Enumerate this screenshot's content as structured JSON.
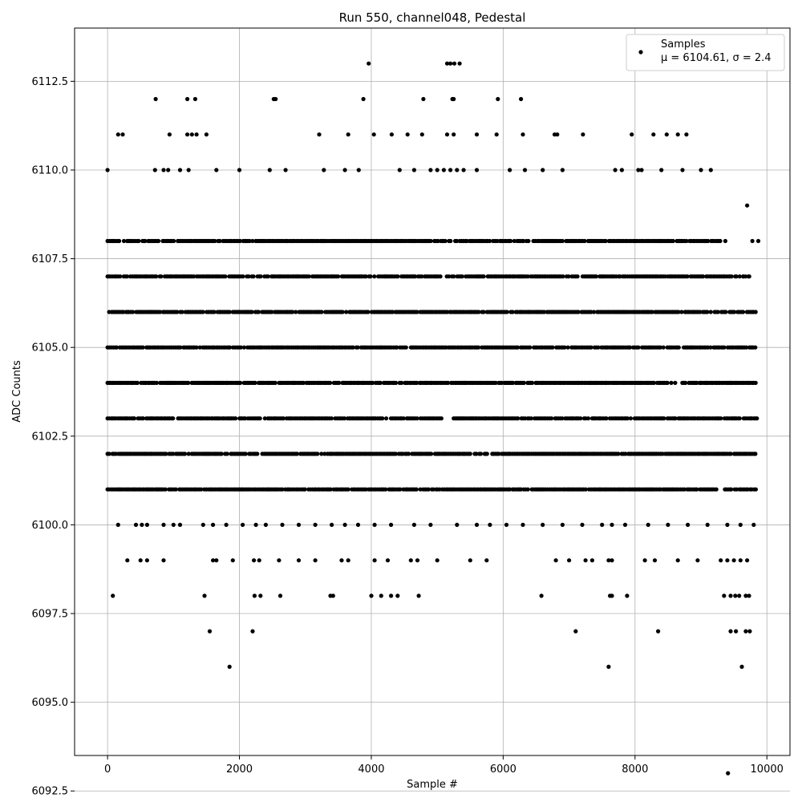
{
  "chart_data": {
    "type": "scatter",
    "title": "Run 550, channel048, Pedestal",
    "xlabel": "Sample #",
    "ylabel": "ADC Counts",
    "xlim": [
      -500,
      10350
    ],
    "ylim": [
      6093.5,
      6114.0
    ],
    "x_ticks": [
      0,
      2000,
      4000,
      6000,
      8000,
      10000
    ],
    "x_tick_labels": [
      "0",
      "2000",
      "4000",
      "6000",
      "8000",
      "10000"
    ],
    "y_ticks": [
      6092.5,
      6095.0,
      6097.5,
      6100.0,
      6102.5,
      6105.0,
      6107.5,
      6110.0,
      6112.5
    ],
    "y_tick_labels": [
      "6092.5",
      "6095.0",
      "6097.5",
      "6100.0",
      "6102.5",
      "6105.0",
      "6107.5",
      "6110.0",
      "6112.5"
    ],
    "grid": true,
    "marker_color": "#000000",
    "legend": {
      "position": "top-right",
      "entry_label": "Samples",
      "stats_line": "μ = 6104.61, σ = 2.4"
    },
    "series": [
      {
        "name": "Samples",
        "mean": 6104.61,
        "sigma": 2.4,
        "x_range": [
          0,
          9850
        ],
        "band_counts": [
          {
            "y": 6101,
            "x_ranges": [
              [
                0,
                9850
              ]
            ]
          },
          {
            "y": 6102,
            "x_ranges": [
              [
                0,
                9850
              ]
            ]
          },
          {
            "y": 6103,
            "x_ranges": [
              [
                0,
                5100
              ],
              [
                5250,
                9850
              ]
            ]
          },
          {
            "y": 6104,
            "x_ranges": [
              [
                0,
                9850
              ]
            ]
          },
          {
            "y": 6105,
            "x_ranges": [
              [
                0,
                9850
              ]
            ]
          },
          {
            "y": 6106,
            "x_ranges": [
              [
                0,
                9850
              ]
            ]
          },
          {
            "y": 6107,
            "x_ranges": [
              [
                0,
                9750
              ]
            ]
          },
          {
            "y": 6108,
            "x_ranges": [
              [
                0,
                9300
              ]
            ]
          }
        ],
        "points": [
          {
            "x": 0,
            "y": 6110
          },
          {
            "x": 160,
            "y": 6111
          },
          {
            "x": 230,
            "y": 6111
          },
          {
            "x": 730,
            "y": 6112
          },
          {
            "x": 1210,
            "y": 6112
          },
          {
            "x": 1330,
            "y": 6112
          },
          {
            "x": 940,
            "y": 6111
          },
          {
            "x": 1210,
            "y": 6111
          },
          {
            "x": 1280,
            "y": 6111
          },
          {
            "x": 1350,
            "y": 6111
          },
          {
            "x": 1500,
            "y": 6111
          },
          {
            "x": 720,
            "y": 6110
          },
          {
            "x": 850,
            "y": 6110
          },
          {
            "x": 920,
            "y": 6110
          },
          {
            "x": 1100,
            "y": 6110
          },
          {
            "x": 1230,
            "y": 6110
          },
          {
            "x": 1650,
            "y": 6110
          },
          {
            "x": 2000,
            "y": 6110
          },
          {
            "x": 2460,
            "y": 6110
          },
          {
            "x": 2520,
            "y": 6112
          },
          {
            "x": 2550,
            "y": 6112
          },
          {
            "x": 2700,
            "y": 6110
          },
          {
            "x": 3210,
            "y": 6111
          },
          {
            "x": 3280,
            "y": 6110
          },
          {
            "x": 3650,
            "y": 6111
          },
          {
            "x": 3600,
            "y": 6110
          },
          {
            "x": 3810,
            "y": 6110
          },
          {
            "x": 3880,
            "y": 6112
          },
          {
            "x": 3960,
            "y": 6113
          },
          {
            "x": 4040,
            "y": 6111
          },
          {
            "x": 4310,
            "y": 6111
          },
          {
            "x": 4430,
            "y": 6110
          },
          {
            "x": 4550,
            "y": 6111
          },
          {
            "x": 4650,
            "y": 6110
          },
          {
            "x": 4770,
            "y": 6111
          },
          {
            "x": 4790,
            "y": 6112
          },
          {
            "x": 4900,
            "y": 6110
          },
          {
            "x": 5000,
            "y": 6110
          },
          {
            "x": 5150,
            "y": 6113
          },
          {
            "x": 5200,
            "y": 6113
          },
          {
            "x": 5260,
            "y": 6113
          },
          {
            "x": 5340,
            "y": 6113
          },
          {
            "x": 5230,
            "y": 6112
          },
          {
            "x": 5250,
            "y": 6112
          },
          {
            "x": 5150,
            "y": 6111
          },
          {
            "x": 5250,
            "y": 6111
          },
          {
            "x": 5100,
            "y": 6110
          },
          {
            "x": 5200,
            "y": 6110
          },
          {
            "x": 5300,
            "y": 6110
          },
          {
            "x": 5400,
            "y": 6110
          },
          {
            "x": 5600,
            "y": 6111
          },
          {
            "x": 5600,
            "y": 6110
          },
          {
            "x": 5900,
            "y": 6111
          },
          {
            "x": 5920,
            "y": 6112
          },
          {
            "x": 6100,
            "y": 6110
          },
          {
            "x": 6270,
            "y": 6112
          },
          {
            "x": 6300,
            "y": 6111
          },
          {
            "x": 6330,
            "y": 6110
          },
          {
            "x": 6600,
            "y": 6110
          },
          {
            "x": 6780,
            "y": 6111
          },
          {
            "x": 6820,
            "y": 6111
          },
          {
            "x": 6900,
            "y": 6110
          },
          {
            "x": 7210,
            "y": 6111
          },
          {
            "x": 7700,
            "y": 6110
          },
          {
            "x": 7800,
            "y": 6110
          },
          {
            "x": 7950,
            "y": 6111
          },
          {
            "x": 8050,
            "y": 6110
          },
          {
            "x": 8100,
            "y": 6110
          },
          {
            "x": 8280,
            "y": 6111
          },
          {
            "x": 8400,
            "y": 6110
          },
          {
            "x": 8480,
            "y": 6111
          },
          {
            "x": 8650,
            "y": 6111
          },
          {
            "x": 8780,
            "y": 6111
          },
          {
            "x": 8720,
            "y": 6110
          },
          {
            "x": 9000,
            "y": 6110
          },
          {
            "x": 9150,
            "y": 6110
          },
          {
            "x": 9700,
            "y": 6109
          },
          {
            "x": 9370,
            "y": 6108
          },
          {
            "x": 9780,
            "y": 6108
          },
          {
            "x": 9870,
            "y": 6108
          },
          {
            "x": 9640,
            "y": 6107
          },
          {
            "x": 9720,
            "y": 6107
          },
          {
            "x": 160,
            "y": 6100
          },
          {
            "x": 430,
            "y": 6100
          },
          {
            "x": 520,
            "y": 6100
          },
          {
            "x": 600,
            "y": 6100
          },
          {
            "x": 850,
            "y": 6100
          },
          {
            "x": 1000,
            "y": 6100
          },
          {
            "x": 1100,
            "y": 6100
          },
          {
            "x": 1450,
            "y": 6100
          },
          {
            "x": 1600,
            "y": 6100
          },
          {
            "x": 1800,
            "y": 6100
          },
          {
            "x": 2050,
            "y": 6100
          },
          {
            "x": 2250,
            "y": 6100
          },
          {
            "x": 2400,
            "y": 6100
          },
          {
            "x": 2650,
            "y": 6100
          },
          {
            "x": 2900,
            "y": 6100
          },
          {
            "x": 3150,
            "y": 6100
          },
          {
            "x": 3400,
            "y": 6100
          },
          {
            "x": 3600,
            "y": 6100
          },
          {
            "x": 3800,
            "y": 6100
          },
          {
            "x": 4050,
            "y": 6100
          },
          {
            "x": 4300,
            "y": 6100
          },
          {
            "x": 4650,
            "y": 6100
          },
          {
            "x": 4900,
            "y": 6100
          },
          {
            "x": 5300,
            "y": 6100
          },
          {
            "x": 5600,
            "y": 6100
          },
          {
            "x": 5800,
            "y": 6100
          },
          {
            "x": 6050,
            "y": 6100
          },
          {
            "x": 6300,
            "y": 6100
          },
          {
            "x": 6600,
            "y": 6100
          },
          {
            "x": 6900,
            "y": 6100
          },
          {
            "x": 7200,
            "y": 6100
          },
          {
            "x": 7500,
            "y": 6100
          },
          {
            "x": 7650,
            "y": 6100
          },
          {
            "x": 7850,
            "y": 6100
          },
          {
            "x": 8200,
            "y": 6100
          },
          {
            "x": 8500,
            "y": 6100
          },
          {
            "x": 8800,
            "y": 6100
          },
          {
            "x": 9100,
            "y": 6100
          },
          {
            "x": 9400,
            "y": 6100
          },
          {
            "x": 9600,
            "y": 6100
          },
          {
            "x": 9800,
            "y": 6100
          },
          {
            "x": 300,
            "y": 6099
          },
          {
            "x": 500,
            "y": 6099
          },
          {
            "x": 600,
            "y": 6099
          },
          {
            "x": 850,
            "y": 6099
          },
          {
            "x": 1600,
            "y": 6099
          },
          {
            "x": 1650,
            "y": 6099
          },
          {
            "x": 1900,
            "y": 6099
          },
          {
            "x": 2220,
            "y": 6099
          },
          {
            "x": 2300,
            "y": 6099
          },
          {
            "x": 2600,
            "y": 6099
          },
          {
            "x": 2900,
            "y": 6099
          },
          {
            "x": 3150,
            "y": 6099
          },
          {
            "x": 3550,
            "y": 6099
          },
          {
            "x": 3650,
            "y": 6099
          },
          {
            "x": 4050,
            "y": 6099
          },
          {
            "x": 4250,
            "y": 6099
          },
          {
            "x": 4600,
            "y": 6099
          },
          {
            "x": 4700,
            "y": 6099
          },
          {
            "x": 5000,
            "y": 6099
          },
          {
            "x": 5500,
            "y": 6099
          },
          {
            "x": 5750,
            "y": 6099
          },
          {
            "x": 6800,
            "y": 6099
          },
          {
            "x": 7000,
            "y": 6099
          },
          {
            "x": 7250,
            "y": 6099
          },
          {
            "x": 7350,
            "y": 6099
          },
          {
            "x": 7600,
            "y": 6099
          },
          {
            "x": 7650,
            "y": 6099
          },
          {
            "x": 8150,
            "y": 6099
          },
          {
            "x": 8300,
            "y": 6099
          },
          {
            "x": 8650,
            "y": 6099
          },
          {
            "x": 8950,
            "y": 6099
          },
          {
            "x": 9300,
            "y": 6099
          },
          {
            "x": 9400,
            "y": 6099
          },
          {
            "x": 9500,
            "y": 6099
          },
          {
            "x": 9600,
            "y": 6099
          },
          {
            "x": 9700,
            "y": 6099
          },
          {
            "x": 80,
            "y": 6098
          },
          {
            "x": 1470,
            "y": 6098
          },
          {
            "x": 2230,
            "y": 6098
          },
          {
            "x": 2320,
            "y": 6098
          },
          {
            "x": 2620,
            "y": 6098
          },
          {
            "x": 3380,
            "y": 6098
          },
          {
            "x": 3420,
            "y": 6098
          },
          {
            "x": 4000,
            "y": 6098
          },
          {
            "x": 4150,
            "y": 6098
          },
          {
            "x": 4300,
            "y": 6098
          },
          {
            "x": 4400,
            "y": 6098
          },
          {
            "x": 4720,
            "y": 6098
          },
          {
            "x": 6580,
            "y": 6098
          },
          {
            "x": 7620,
            "y": 6098
          },
          {
            "x": 7650,
            "y": 6098
          },
          {
            "x": 7880,
            "y": 6098
          },
          {
            "x": 9350,
            "y": 6098
          },
          {
            "x": 9450,
            "y": 6098
          },
          {
            "x": 9520,
            "y": 6098
          },
          {
            "x": 9580,
            "y": 6098
          },
          {
            "x": 9680,
            "y": 6098
          },
          {
            "x": 9730,
            "y": 6098
          },
          {
            "x": 1550,
            "y": 6097
          },
          {
            "x": 2200,
            "y": 6097
          },
          {
            "x": 7100,
            "y": 6097
          },
          {
            "x": 8350,
            "y": 6097
          },
          {
            "x": 9450,
            "y": 6097
          },
          {
            "x": 9530,
            "y": 6097
          },
          {
            "x": 9680,
            "y": 6097
          },
          {
            "x": 9740,
            "y": 6097
          },
          {
            "x": 1850,
            "y": 6096
          },
          {
            "x": 7600,
            "y": 6096
          },
          {
            "x": 9620,
            "y": 6096
          },
          {
            "x": 9410,
            "y": 6093
          }
        ]
      }
    ]
  }
}
